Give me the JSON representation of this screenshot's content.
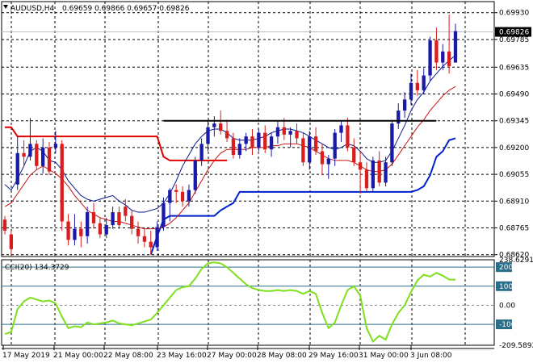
{
  "header": {
    "symbol": "AUDUSD,H4",
    "ohlc": "0.69659 0.69866 0.69657 0.69826",
    "triangle_icon": "down-triangle-icon"
  },
  "price_axis": {
    "labels": [
      "0.69930",
      "0.69785",
      "0.69635",
      "0.69490",
      "0.69345",
      "0.69200",
      "0.69055",
      "0.68910",
      "0.68765",
      "0.68620"
    ],
    "current_price": "0.69826"
  },
  "time_axis": {
    "labels": [
      "17 May 2019",
      "21 May 00:00",
      "22 May 08:00",
      "23 May 16:00",
      "27 May 00:00",
      "28 May 08:00",
      "29 May 16:00",
      "31 May 00:00",
      "3 Jun 08:00"
    ]
  },
  "indicator": {
    "label": "CCI(20) 134.3729",
    "levels": [
      "238.6291",
      "200",
      "100",
      "0.00",
      "-100",
      "-209.5892"
    ]
  },
  "colors": {
    "bull": "#1a1aa8",
    "bear": "#d81e1e",
    "blue_ma": "#0a1a8c",
    "red_ma": "#c81414",
    "trail_red": "#e00000",
    "trail_blue": "#0022cc",
    "cci_line": "#7ee01c",
    "level_line": "#2a6f8a",
    "grid": "#000000",
    "resistance": "#000000"
  },
  "chart_data": [
    {
      "type": "candlestick",
      "title": "AUDUSD,H4",
      "y_range": [
        0.6861,
        0.6999
      ],
      "ohlc": [
        [
          0.6881,
          0.6883,
          0.6873,
          0.6875
        ],
        [
          0.6873,
          0.6875,
          0.6861,
          0.6865
        ],
        [
          0.69,
          0.6926,
          0.6897,
          0.6917
        ],
        [
          0.6917,
          0.6924,
          0.691,
          0.6915
        ],
        [
          0.6915,
          0.6936,
          0.6913,
          0.6922
        ],
        [
          0.6922,
          0.6924,
          0.6908,
          0.691
        ],
        [
          0.691,
          0.6925,
          0.6906,
          0.692
        ],
        [
          0.692,
          0.6923,
          0.6905,
          0.6907
        ],
        [
          0.692,
          0.6929,
          0.6917,
          0.6922
        ],
        [
          0.6922,
          0.6924,
          0.6875,
          0.688
        ],
        [
          0.688,
          0.6884,
          0.6867,
          0.687
        ],
        [
          0.687,
          0.6884,
          0.6867,
          0.6876
        ],
        [
          0.6876,
          0.688,
          0.6866,
          0.6872
        ],
        [
          0.6872,
          0.6888,
          0.6868,
          0.6885
        ],
        [
          0.6885,
          0.689,
          0.6876,
          0.6879
        ],
        [
          0.6879,
          0.6882,
          0.6871,
          0.6873
        ],
        [
          0.6873,
          0.6882,
          0.6871,
          0.6878
        ],
        [
          0.6878,
          0.6888,
          0.6876,
          0.6885
        ],
        [
          0.6885,
          0.6888,
          0.6876,
          0.6878
        ],
        [
          0.6888,
          0.6892,
          0.688,
          0.6883
        ],
        [
          0.6883,
          0.6886,
          0.6873,
          0.6876
        ],
        [
          0.6876,
          0.688,
          0.6868,
          0.6872
        ],
        [
          0.6872,
          0.6876,
          0.6866,
          0.6869
        ],
        [
          0.6869,
          0.6875,
          0.6862,
          0.6866
        ],
        [
          0.6866,
          0.688,
          0.6864,
          0.6877
        ],
        [
          0.6877,
          0.6893,
          0.6875,
          0.689
        ],
        [
          0.689,
          0.6898,
          0.688,
          0.6897
        ],
        [
          0.6897,
          0.69,
          0.689,
          0.6896
        ],
        [
          0.6896,
          0.6899,
          0.6888,
          0.6891
        ],
        [
          0.6891,
          0.69,
          0.6888,
          0.6897
        ],
        [
          0.6897,
          0.6915,
          0.6895,
          0.6913
        ],
        [
          0.6913,
          0.6925,
          0.691,
          0.6922
        ],
        [
          0.6922,
          0.6935,
          0.6918,
          0.6931
        ],
        [
          0.6931,
          0.6937,
          0.6926,
          0.6933
        ],
        [
          0.6933,
          0.694,
          0.6927,
          0.6929
        ],
        [
          0.6929,
          0.6935,
          0.6923,
          0.6925
        ],
        [
          0.6925,
          0.6928,
          0.6914,
          0.6916
        ],
        [
          0.6916,
          0.6925,
          0.6914,
          0.6922
        ],
        [
          0.6922,
          0.6928,
          0.6918,
          0.6926
        ],
        [
          0.6926,
          0.693,
          0.6916,
          0.692
        ],
        [
          0.692,
          0.693,
          0.6918,
          0.6928
        ],
        [
          0.6928,
          0.6932,
          0.6917,
          0.6919
        ],
        [
          0.6919,
          0.6928,
          0.6915,
          0.6926
        ],
        [
          0.6926,
          0.6934,
          0.6922,
          0.6931
        ],
        [
          0.6931,
          0.6936,
          0.6924,
          0.6927
        ],
        [
          0.6927,
          0.6931,
          0.692,
          0.6929
        ],
        [
          0.6929,
          0.6933,
          0.6922,
          0.6925
        ],
        [
          0.6925,
          0.6928,
          0.691,
          0.6912
        ],
        [
          0.6912,
          0.6929,
          0.6908,
          0.6926
        ],
        [
          0.6926,
          0.6931,
          0.6916,
          0.6918
        ],
        [
          0.6918,
          0.6922,
          0.6905,
          0.6911
        ],
        [
          0.6911,
          0.6916,
          0.6903,
          0.6914
        ],
        [
          0.6914,
          0.693,
          0.691,
          0.6928
        ],
        [
          0.6928,
          0.6934,
          0.6923,
          0.6932
        ],
        [
          0.6932,
          0.6936,
          0.6918,
          0.692
        ],
        [
          0.692,
          0.6925,
          0.691,
          0.6912
        ],
        [
          0.6912,
          0.6918,
          0.6895,
          0.6908
        ],
        [
          0.6908,
          0.6912,
          0.6896,
          0.6898
        ],
        [
          0.6898,
          0.6915,
          0.6896,
          0.6913
        ],
        [
          0.6913,
          0.6918,
          0.6899,
          0.6901
        ],
        [
          0.6901,
          0.6915,
          0.6899,
          0.6912
        ],
        [
          0.6912,
          0.6935,
          0.691,
          0.6933
        ],
        [
          0.6933,
          0.6944,
          0.693,
          0.694
        ],
        [
          0.694,
          0.695,
          0.6936,
          0.6946
        ],
        [
          0.6946,
          0.696,
          0.6943,
          0.6955
        ],
        [
          0.6955,
          0.6962,
          0.6948,
          0.6951
        ],
        [
          0.6951,
          0.6963,
          0.6949,
          0.6959
        ],
        [
          0.6959,
          0.698,
          0.6956,
          0.6978
        ],
        [
          0.6978,
          0.6985,
          0.6962,
          0.6966
        ],
        [
          0.6966,
          0.6976,
          0.6962,
          0.6972
        ],
        [
          0.6972,
          0.6992,
          0.696,
          0.6964
        ],
        [
          0.6966,
          0.6987,
          0.6966,
          0.6983
        ]
      ],
      "resistance_level": 0.69345,
      "blue_ma": [
        0.69,
        0.6897,
        0.6903,
        0.691,
        0.6918,
        0.692,
        0.6918,
        0.6913,
        0.6912,
        0.6908,
        0.6902,
        0.6898,
        0.6894,
        0.6892,
        0.6891,
        0.6892,
        0.6893,
        0.6894,
        0.6891,
        0.6889,
        0.6886,
        0.6885,
        0.6885,
        0.6886,
        0.6887,
        0.689,
        0.6895,
        0.6902,
        0.691,
        0.6916,
        0.6922,
        0.6926,
        0.6929,
        0.693,
        0.693,
        0.6928,
        0.6925,
        0.6924,
        0.6924,
        0.6924,
        0.6925,
        0.6926,
        0.6928,
        0.6929,
        0.693,
        0.693,
        0.6929,
        0.6928,
        0.6926,
        0.6924,
        0.6922,
        0.692,
        0.6919,
        0.692,
        0.6922,
        0.6921,
        0.6918,
        0.6914,
        0.6912,
        0.6912,
        0.6913,
        0.6918,
        0.6925,
        0.6932,
        0.694,
        0.6946,
        0.695,
        0.6956,
        0.696,
        0.6964,
        0.6967,
        0.697
      ],
      "red_ma": [
        0.6888,
        0.689,
        0.6895,
        0.69,
        0.6905,
        0.6908,
        0.691,
        0.6908,
        0.6906,
        0.6903,
        0.6899,
        0.6894,
        0.689,
        0.6886,
        0.6884,
        0.6882,
        0.6881,
        0.688,
        0.688,
        0.6879,
        0.6878,
        0.6877,
        0.6876,
        0.6876,
        0.6876,
        0.6877,
        0.6879,
        0.6882,
        0.6886,
        0.689,
        0.6896,
        0.6902,
        0.6908,
        0.6913,
        0.6917,
        0.6919,
        0.6919,
        0.6919,
        0.6919,
        0.692,
        0.692,
        0.692,
        0.6921,
        0.6921,
        0.6922,
        0.6922,
        0.6922,
        0.6921,
        0.692,
        0.6918,
        0.6916,
        0.6914,
        0.6913,
        0.6913,
        0.6913,
        0.6912,
        0.691,
        0.6908,
        0.6907,
        0.6907,
        0.6908,
        0.6911,
        0.6916,
        0.6921,
        0.6926,
        0.6931,
        0.6935,
        0.694,
        0.6944,
        0.6948,
        0.6951,
        0.6953
      ],
      "trail_red": [
        0.6931,
        0.6931,
        0.6926,
        0.6926,
        0.6926,
        0.6926,
        0.6926,
        0.6926,
        0.6926,
        0.6926,
        0.6926,
        0.6926,
        0.6926,
        0.6926,
        0.6926,
        0.6926,
        0.6926,
        0.6926,
        0.6926,
        0.6926,
        0.6926,
        0.6926,
        0.6926,
        0.6926,
        0.6926,
        0.6915,
        0.6913,
        0.6913,
        0.6913,
        0.6913,
        0.6913,
        0.6913,
        0.6913,
        0.6913,
        0.6913,
        0.6913
      ],
      "trail_blue": [
        0.6862,
        0.6872,
        0.6881,
        0.6883,
        0.6883,
        0.6883,
        0.6883,
        0.6883,
        0.6883,
        0.6883,
        0.6883,
        0.6886,
        0.6888,
        0.689,
        0.6896,
        0.6896,
        0.6896,
        0.6896,
        0.6896,
        0.6896,
        0.6896,
        0.6896,
        0.6896,
        0.6896,
        0.6896,
        0.6896,
        0.6896,
        0.6896,
        0.6896,
        0.6896,
        0.6896,
        0.6896,
        0.6896,
        0.6896,
        0.6896,
        0.6896,
        0.6896,
        0.6896,
        0.6896,
        0.6896,
        0.6896,
        0.6896,
        0.6897,
        0.6899,
        0.6905,
        0.6915,
        0.6918,
        0.6924,
        0.6925
      ]
    },
    {
      "type": "line",
      "title": "CCI(20) 134.3729",
      "y_range": [
        -209.5892,
        238.6291
      ],
      "levels": [
        200,
        100,
        0,
        -100
      ],
      "values": [
        -150,
        -140,
        -20,
        20,
        40,
        30,
        20,
        25,
        10,
        -60,
        -120,
        -110,
        -115,
        -90,
        -100,
        -95,
        -90,
        -80,
        -95,
        -100,
        -105,
        -95,
        -85,
        -75,
        -40,
        0,
        40,
        80,
        95,
        100,
        140,
        190,
        220,
        225,
        220,
        200,
        170,
        140,
        110,
        90,
        80,
        75,
        75,
        80,
        75,
        80,
        75,
        60,
        75,
        60,
        -40,
        -120,
        -90,
        0,
        80,
        100,
        50,
        -120,
        -190,
        -160,
        -180,
        -100,
        -40,
        0,
        70,
        130,
        160,
        150,
        170,
        155,
        135,
        134
      ]
    }
  ]
}
